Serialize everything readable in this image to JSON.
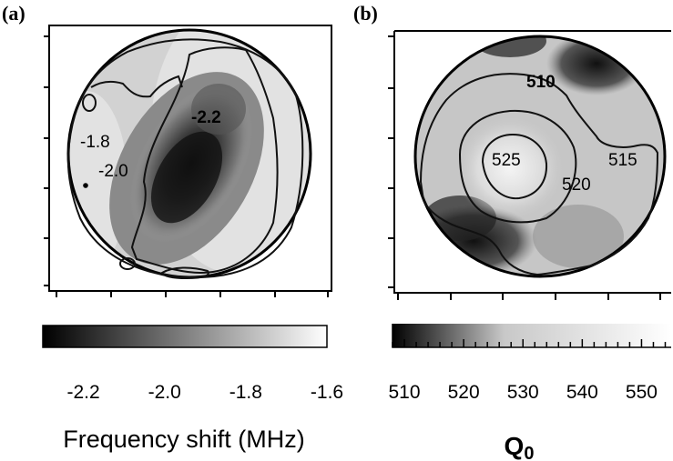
{
  "chart_data": [
    {
      "type": "heatmap",
      "panel": "(a)",
      "contour_labels": [
        "-1.8",
        "-2.0",
        "-2.2"
      ],
      "colorbar": {
        "min": -2.3,
        "max": -1.6,
        "ticks": [
          "-2.2",
          "-2.0",
          "-1.8",
          "-1.6"
        ],
        "tick_values": [
          -2.2,
          -2.0,
          -1.8,
          -1.6
        ],
        "label": "Frequency shift (MHz)",
        "colormap": [
          "#000000",
          "#ffffff"
        ]
      }
    },
    {
      "type": "heatmap",
      "panel": "(b)",
      "contour_labels": [
        "510",
        "515",
        "520",
        "525"
      ],
      "colorbar": {
        "min": 508,
        "max": 555,
        "ticks": [
          "510",
          "520",
          "530",
          "540",
          "550"
        ],
        "tick_values": [
          510,
          520,
          530,
          540,
          550
        ],
        "label": "Q",
        "label_subscript": "0",
        "colormap": [
          "#000000",
          "#ffffff"
        ]
      }
    }
  ]
}
